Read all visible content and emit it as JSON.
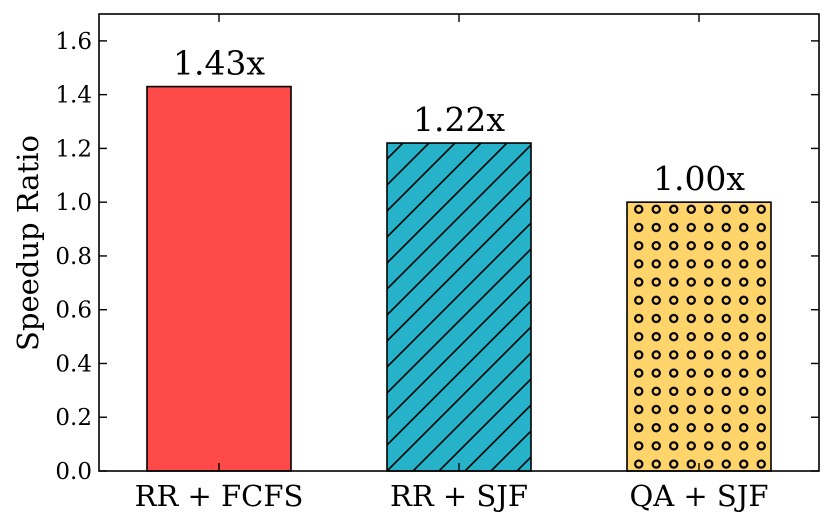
{
  "chart_data": {
    "type": "bar",
    "title": "",
    "xlabel": "",
    "ylabel": "Speedup Ratio",
    "ylim": [
      0,
      1.7
    ],
    "yticks": [
      0.0,
      0.2,
      0.4,
      0.6,
      0.8,
      1.0,
      1.2,
      1.4,
      1.6
    ],
    "ytick_labels": [
      "0.0",
      "0.2",
      "0.4",
      "0.6",
      "0.8",
      "1.0",
      "1.2",
      "1.4",
      "1.6"
    ],
    "grid": false,
    "categories": [
      "RR + FCFS",
      "RR + SJF",
      "QA + SJF"
    ],
    "values": [
      1.43,
      1.22,
      1.0
    ],
    "data_labels": [
      "1.43x",
      "1.22x",
      "1.00x"
    ],
    "colors": [
      "#ff4a4a",
      "#26b2c8",
      "#ffd56b"
    ],
    "patterns": [
      "solid",
      "diagonal-hatch",
      "circle-dots"
    ]
  }
}
